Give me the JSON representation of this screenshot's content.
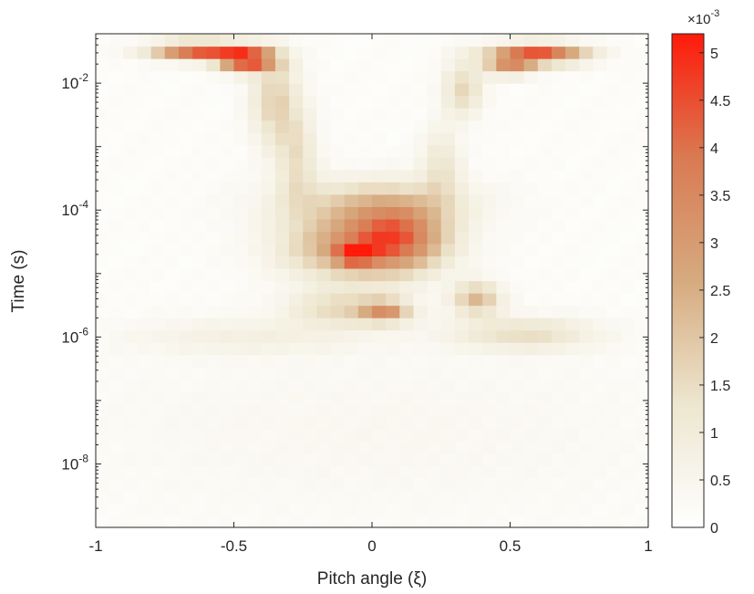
{
  "chart_data": {
    "type": "heatmap",
    "title": "",
    "xlabel": "Pitch angle (ξ)",
    "ylabel": "Time (s)",
    "xlim": [
      -1,
      1
    ],
    "ylim": [
      1e-09,
      0.06
    ],
    "yscale": "log",
    "x_ticks": [
      -1,
      -0.5,
      0,
      0.5,
      1
    ],
    "x_tick_labels": [
      "-1",
      "-0.5",
      "0",
      "0.5",
      "1"
    ],
    "y_ticks": [
      1e-08,
      1e-06,
      0.0001,
      0.01
    ],
    "y_tick_labels": [
      {
        "base": "10",
        "exp": "-8"
      },
      {
        "base": "10",
        "exp": "-6"
      },
      {
        "base": "10",
        "exp": "-4"
      },
      {
        "base": "10",
        "exp": "-2"
      }
    ],
    "grid": false,
    "colorbar": {
      "label_multiplier": {
        "prefix": "×10",
        "exp": "-3"
      },
      "limits": [
        0,
        5.2
      ],
      "ticks": [
        0,
        0.5,
        1,
        1.5,
        2,
        2.5,
        3,
        3.5,
        4,
        4.5,
        5
      ],
      "tick_labels": [
        "0",
        "0.5",
        "1",
        "1.5",
        "2",
        "2.5",
        "3",
        "3.5",
        "4",
        "4.5",
        "5"
      ],
      "colormap": [
        "#ffffff",
        "#ede6cf",
        "#d6aa7f",
        "#d97a52",
        "#ff1a0a"
      ],
      "units_scale": 0.001
    },
    "cells": {
      "n_x": 40,
      "n_y": 40,
      "x_range": [
        -1,
        1
      ],
      "log_y_range": [
        -9,
        -1.24
      ],
      "note_units": "values in units of 1e-3",
      "features": [
        {
          "x": -0.62,
          "log_y": -1.5,
          "sx": 0.12,
          "sy": 0.1,
          "v": 4.2
        },
        {
          "x": -0.45,
          "log_y": -1.65,
          "sx": 0.07,
          "sy": 0.12,
          "v": 4.8
        },
        {
          "x": 0.6,
          "log_y": -1.55,
          "sx": 0.12,
          "sy": 0.11,
          "v": 4.3
        },
        {
          "x": 0.5,
          "log_y": -1.75,
          "sx": 0.06,
          "sy": 0.1,
          "v": 2.6
        },
        {
          "x": -0.35,
          "log_y": -2.3,
          "sx": 0.06,
          "sy": 0.5,
          "v": 1.6
        },
        {
          "x": 0.33,
          "log_y": -2.1,
          "sx": 0.05,
          "sy": 0.3,
          "v": 1.5
        },
        {
          "x": -0.27,
          "log_y": -3.2,
          "sx": 0.05,
          "sy": 0.5,
          "v": 1.2
        },
        {
          "x": 0.25,
          "log_y": -3.3,
          "sx": 0.05,
          "sy": 0.4,
          "v": 1.1
        },
        {
          "x": -0.05,
          "log_y": -4.6,
          "sx": 0.18,
          "sy": 0.35,
          "v": 2.8
        },
        {
          "x": 0.1,
          "log_y": -4.4,
          "sx": 0.12,
          "sy": 0.35,
          "v": 2.5
        },
        {
          "x": -0.06,
          "log_y": -4.7,
          "sx": 0.04,
          "sy": 0.08,
          "v": 5.0
        },
        {
          "x": 0.0,
          "log_y": -3.9,
          "sx": 0.24,
          "sy": 0.28,
          "v": 1.5
        },
        {
          "x": -0.1,
          "log_y": -5.55,
          "sx": 0.14,
          "sy": 0.2,
          "v": 1.4
        },
        {
          "x": 0.05,
          "log_y": -5.6,
          "sx": 0.06,
          "sy": 0.12,
          "v": 2.4
        },
        {
          "x": 0.38,
          "log_y": -5.4,
          "sx": 0.06,
          "sy": 0.18,
          "v": 2.1
        },
        {
          "x": 0.55,
          "log_y": -5.95,
          "sx": 0.18,
          "sy": 0.18,
          "v": 1.3
        },
        {
          "x": -0.45,
          "log_y": -6.0,
          "sx": 0.3,
          "sy": 0.2,
          "v": 0.6
        },
        {
          "x": 0.0,
          "log_y": -7.5,
          "sx": 0.7,
          "sy": 0.9,
          "v": 0.25
        }
      ]
    }
  }
}
